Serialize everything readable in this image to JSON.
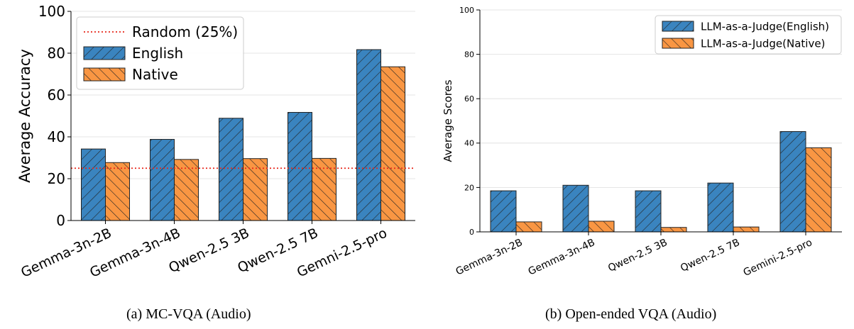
{
  "captions": {
    "left": "(a)  MC-VQA (Audio)",
    "right": "(b)  Open-ended VQA (Audio)"
  },
  "colors": {
    "english": "#3a84bf",
    "native": "#f99643",
    "random_line": "#e8281b"
  },
  "chart_data": [
    {
      "type": "bar",
      "categories": [
        "Gemma-3n-2B",
        "Gemma-3n-4B",
        "Qwen-2.5 3B",
        "Qwen-2.5 7B",
        "Gemni-2.5-pro"
      ],
      "series": [
        {
          "name": "English",
          "values": [
            34.2,
            38.8,
            48.9,
            51.7,
            81.7
          ]
        },
        {
          "name": "Native",
          "values": [
            27.7,
            29.2,
            29.6,
            29.7,
            73.5
          ]
        }
      ],
      "reference_line": {
        "name": "Random (25%)",
        "value": 25
      },
      "xlabel": "",
      "ylabel": "Average Accuracy",
      "ylim": [
        0,
        100
      ],
      "yticks": [
        0,
        20,
        40,
        60,
        80,
        100
      ],
      "grid": true,
      "legend": "top-left",
      "hatched": true
    },
    {
      "type": "bar",
      "categories": [
        "Gemma-3n-2B",
        "Gemma-3n-4B",
        "Qwen-2.5 3B",
        "Qwen-2.5 7B",
        "Gemini-2.5-pro"
      ],
      "series": [
        {
          "name": "LLM-as-a-Judge(English)",
          "values": [
            18.5,
            21.0,
            18.5,
            22.0,
            45.2
          ]
        },
        {
          "name": "LLM-as-a-Judge(Native)",
          "values": [
            4.5,
            4.8,
            2.0,
            2.2,
            37.9
          ]
        }
      ],
      "xlabel": "",
      "ylabel": "Average Scores",
      "ylim": [
        0,
        100
      ],
      "yticks": [
        0,
        20,
        40,
        60,
        80,
        100
      ],
      "grid": true,
      "legend": "top-right",
      "hatched": true
    }
  ]
}
